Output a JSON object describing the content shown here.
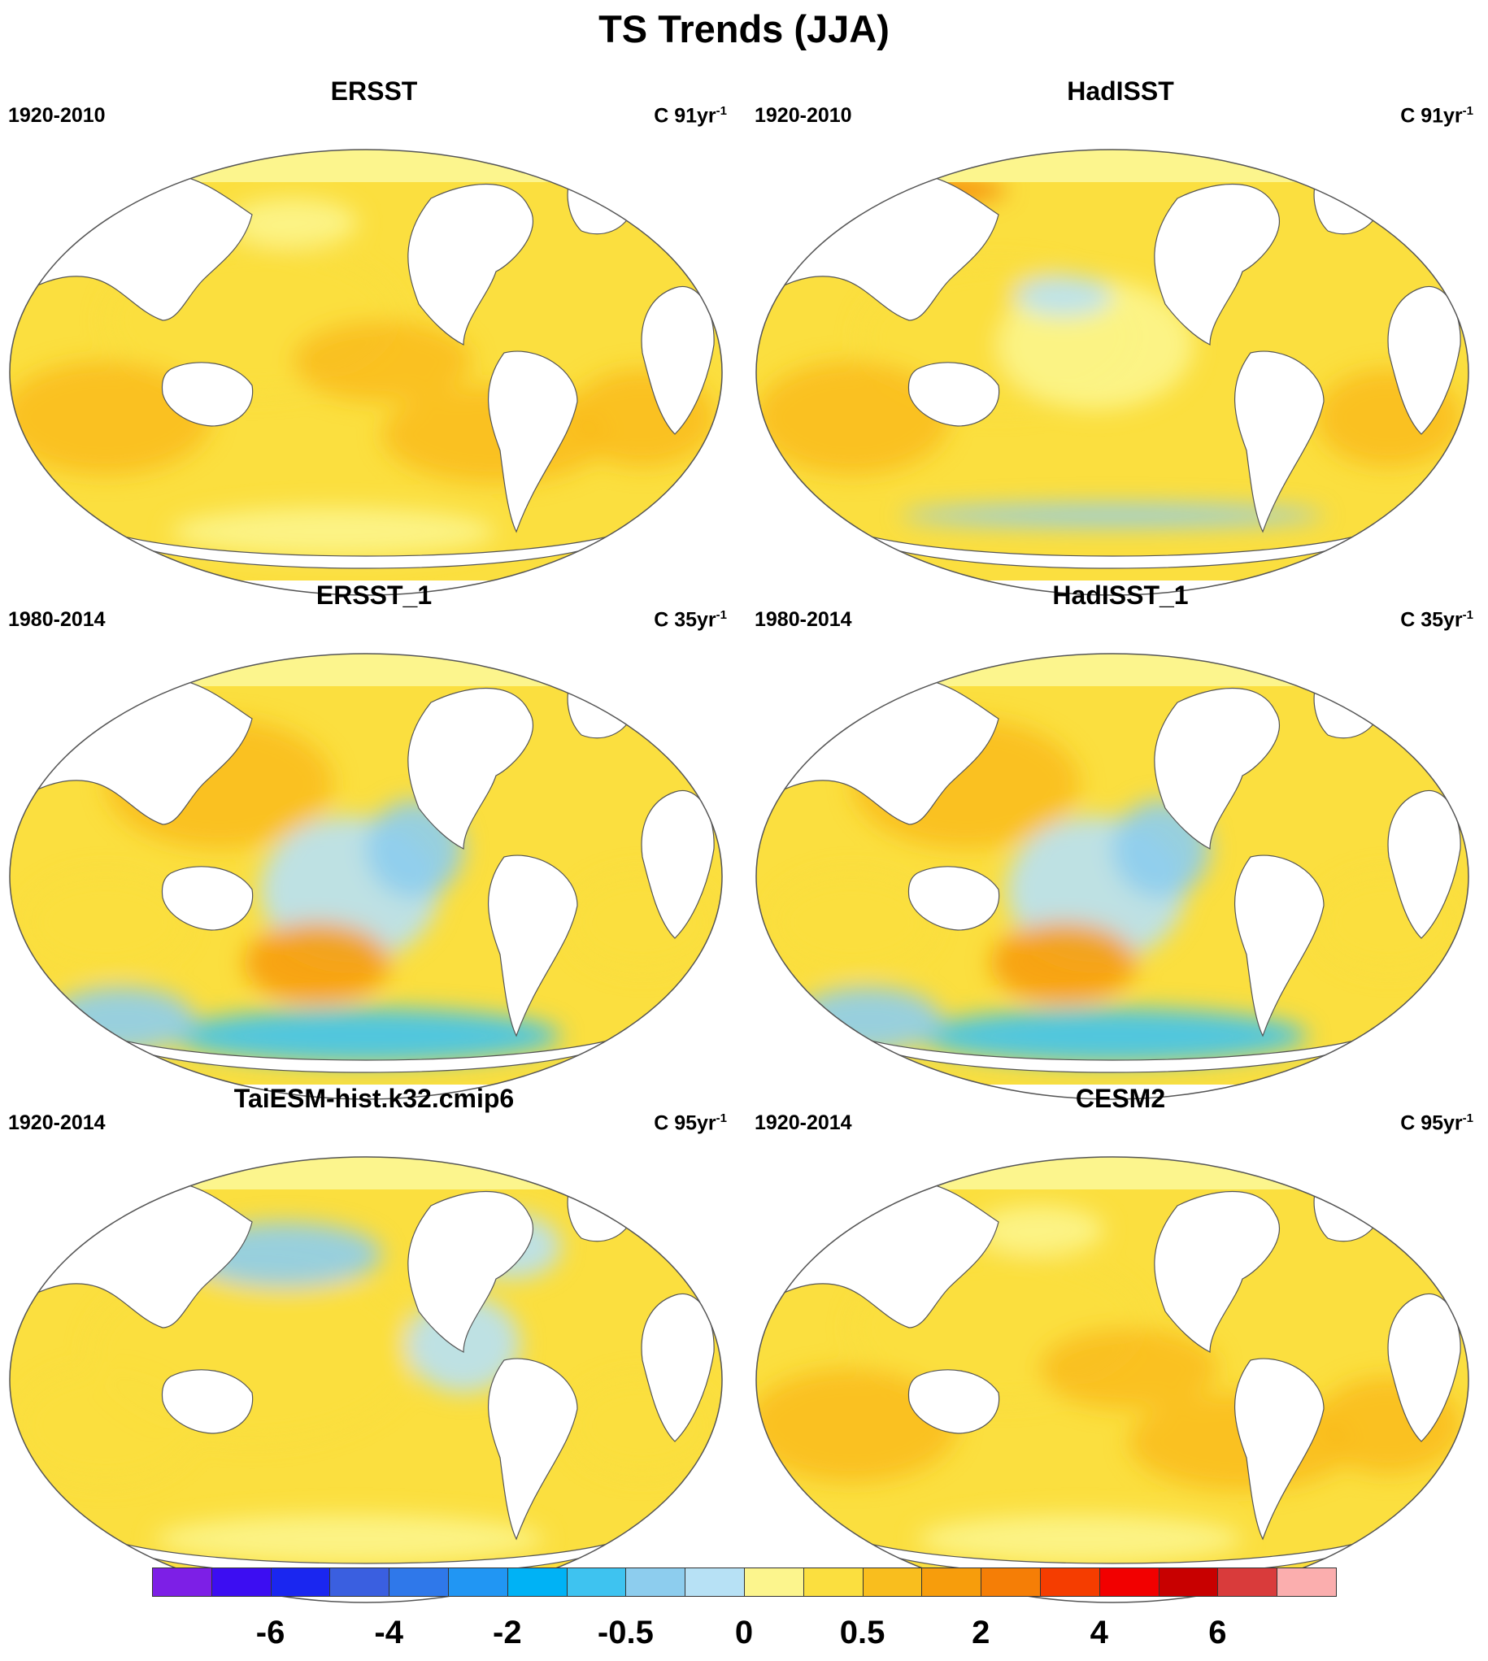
{
  "title": "TS Trends (JJA)",
  "panels": [
    {
      "title": "ERSST",
      "period": "1920-2010",
      "units_prefix": "C ",
      "units_num": "91yr",
      "units_exp": "-1",
      "theme": "warm"
    },
    {
      "title": "HadISST",
      "period": "1920-2010",
      "units_prefix": "C ",
      "units_num": "91yr",
      "units_exp": "-1",
      "theme": "warm_cool_south"
    },
    {
      "title": "ERSST_1",
      "period": "1980-2014",
      "units_prefix": "C ",
      "units_num": "35yr",
      "units_exp": "-1",
      "theme": "mixed_cool_east"
    },
    {
      "title": "HadISST_1",
      "period": "1980-2014",
      "units_prefix": "C ",
      "units_num": "35yr",
      "units_exp": "-1",
      "theme": "mixed_cool_east"
    },
    {
      "title": "TaiESM-hist.k32.cmip6",
      "period": "1920-2014",
      "units_prefix": "C ",
      "units_num": "95yr",
      "units_exp": "-1",
      "theme": "mild_cool_north"
    },
    {
      "title": "CESM2",
      "period": "1920-2014",
      "units_prefix": "C ",
      "units_num": "95yr",
      "units_exp": "-1",
      "theme": "warm"
    }
  ],
  "colorbar": {
    "colors": [
      "#7d1fe6",
      "#3c0df2",
      "#1a26f0",
      "#3a5fe0",
      "#2f78ea",
      "#2196f3",
      "#00b2f5",
      "#3ec3f0",
      "#8dcdee",
      "#b7e1f5",
      "#fcf58d",
      "#fbdf3f",
      "#f9be1e",
      "#f79d0c",
      "#f57e06",
      "#f53d00",
      "#f20000",
      "#c80000",
      "#d93b3b",
      "#fbaeae"
    ],
    "labels": [
      {
        "text": "-6",
        "index": 2
      },
      {
        "text": "-4",
        "index": 4
      },
      {
        "text": "-2",
        "index": 6
      },
      {
        "text": "-0.5",
        "index": 8
      },
      {
        "text": "0",
        "index": 10
      },
      {
        "text": "0.5",
        "index": 12
      },
      {
        "text": "2",
        "index": 14
      },
      {
        "text": "4",
        "index": 16
      },
      {
        "text": "6",
        "index": 18
      }
    ]
  }
}
